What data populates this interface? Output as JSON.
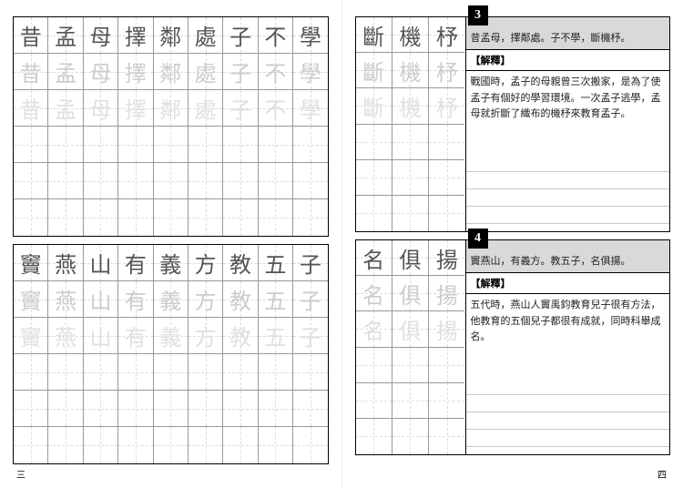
{
  "colors": {
    "header_bg": "#d9d9d9",
    "num_bg": "#000000",
    "border": "#000000",
    "char_solid": "#555555",
    "char_light": "#cccccc",
    "char_trace": "#e0e0e0",
    "guide": "#dddddd",
    "rule": "#c8c8c8"
  },
  "left": {
    "block1": {
      "cols": 8,
      "chars": [
        "昔",
        "孟",
        "母",
        "擇",
        "鄰",
        "處",
        "子",
        "不",
        "學"
      ],
      "rows_style": [
        "solid",
        "light",
        "trace",
        "empty",
        "empty",
        "empty"
      ]
    },
    "block2": {
      "cols": 8,
      "chars_wide": [
        "竇",
        "燕",
        "山",
        "有",
        "義",
        "方",
        "教",
        "五",
        "子"
      ],
      "rows_style": [
        "solid",
        "light",
        "trace",
        "empty",
        "empty",
        "empty"
      ]
    }
  },
  "right": {
    "section3": {
      "num": "3",
      "grid_chars": [
        "斷",
        "機",
        "杼"
      ],
      "grid_rows_style": [
        "solid",
        "light",
        "trace",
        "empty",
        "empty",
        "empty"
      ],
      "source": "昔孟母，擇鄰處。子不學，斷機杼。",
      "jieshi_label": "【解釋】",
      "body": "戰國時，孟子的母親曾三次搬家，是為了使孟子有個好的學習環境。一次孟子逃學，孟母就折斷了織布的機杼來教育孟子。"
    },
    "section4": {
      "num": "4",
      "grid_chars": [
        "名",
        "俱",
        "揚"
      ],
      "grid_rows_style": [
        "solid",
        "light",
        "trace",
        "empty",
        "empty",
        "empty"
      ],
      "source": "竇燕山，有義方。教五子，名俱揚。",
      "jieshi_label": "【解釋】",
      "body": "五代時，燕山人竇禹鈞教育兒子很有方法，他教育的五個兒子都很有成就，同時科舉成名。"
    }
  },
  "page_num_left": "三",
  "page_num_right": "四"
}
